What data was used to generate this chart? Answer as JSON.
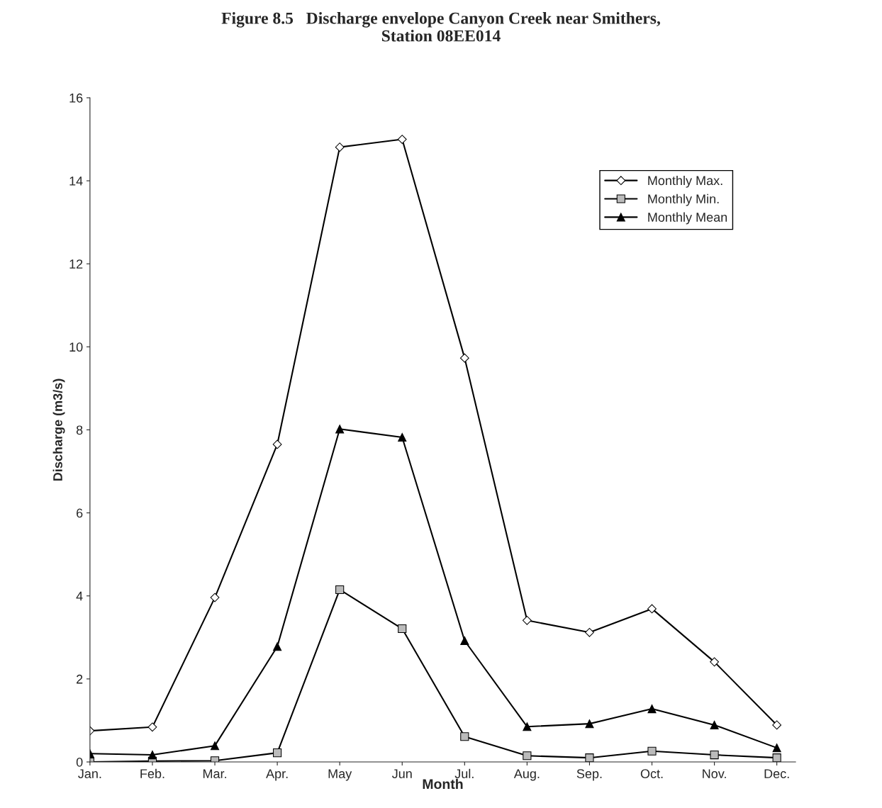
{
  "chart_data": {
    "type": "line",
    "title": "Figure 8.5   Discharge envelope Canyon Creek near Smithers,\nStation 08EE014",
    "xlabel": "Month",
    "ylabel": "Discharge (m3/s)",
    "categories": [
      "Jan.",
      "Feb.",
      "Mar.",
      "Apr.",
      "May",
      "Jun",
      "Jul.",
      "Aug.",
      "Sep.",
      "Oct.",
      "Nov.",
      "Dec."
    ],
    "series": [
      {
        "name": "Monthly Max.",
        "color": "#000000",
        "marker": "diamond",
        "values": [
          0.75,
          0.84,
          3.96,
          7.65,
          14.81,
          15.0,
          9.73,
          3.41,
          3.12,
          3.69,
          2.41,
          0.89
        ]
      },
      {
        "name": "Monthly Min.",
        "color": "#000000",
        "marker": "square",
        "values": [
          0.0,
          0.02,
          0.03,
          0.22,
          4.15,
          3.21,
          0.61,
          0.15,
          0.1,
          0.26,
          0.17,
          0.1
        ]
      },
      {
        "name": "Monthly Mean",
        "color": "#000000",
        "marker": "triangle",
        "values": [
          0.2,
          0.17,
          0.39,
          2.78,
          8.02,
          7.82,
          2.92,
          0.85,
          0.92,
          1.28,
          0.89,
          0.34
        ]
      }
    ],
    "ylim": [
      0,
      16
    ],
    "yticks": [
      0,
      2,
      4,
      6,
      8,
      10,
      12,
      14,
      16
    ],
    "grid": false,
    "legend": "top right",
    "line_style": "solid"
  }
}
